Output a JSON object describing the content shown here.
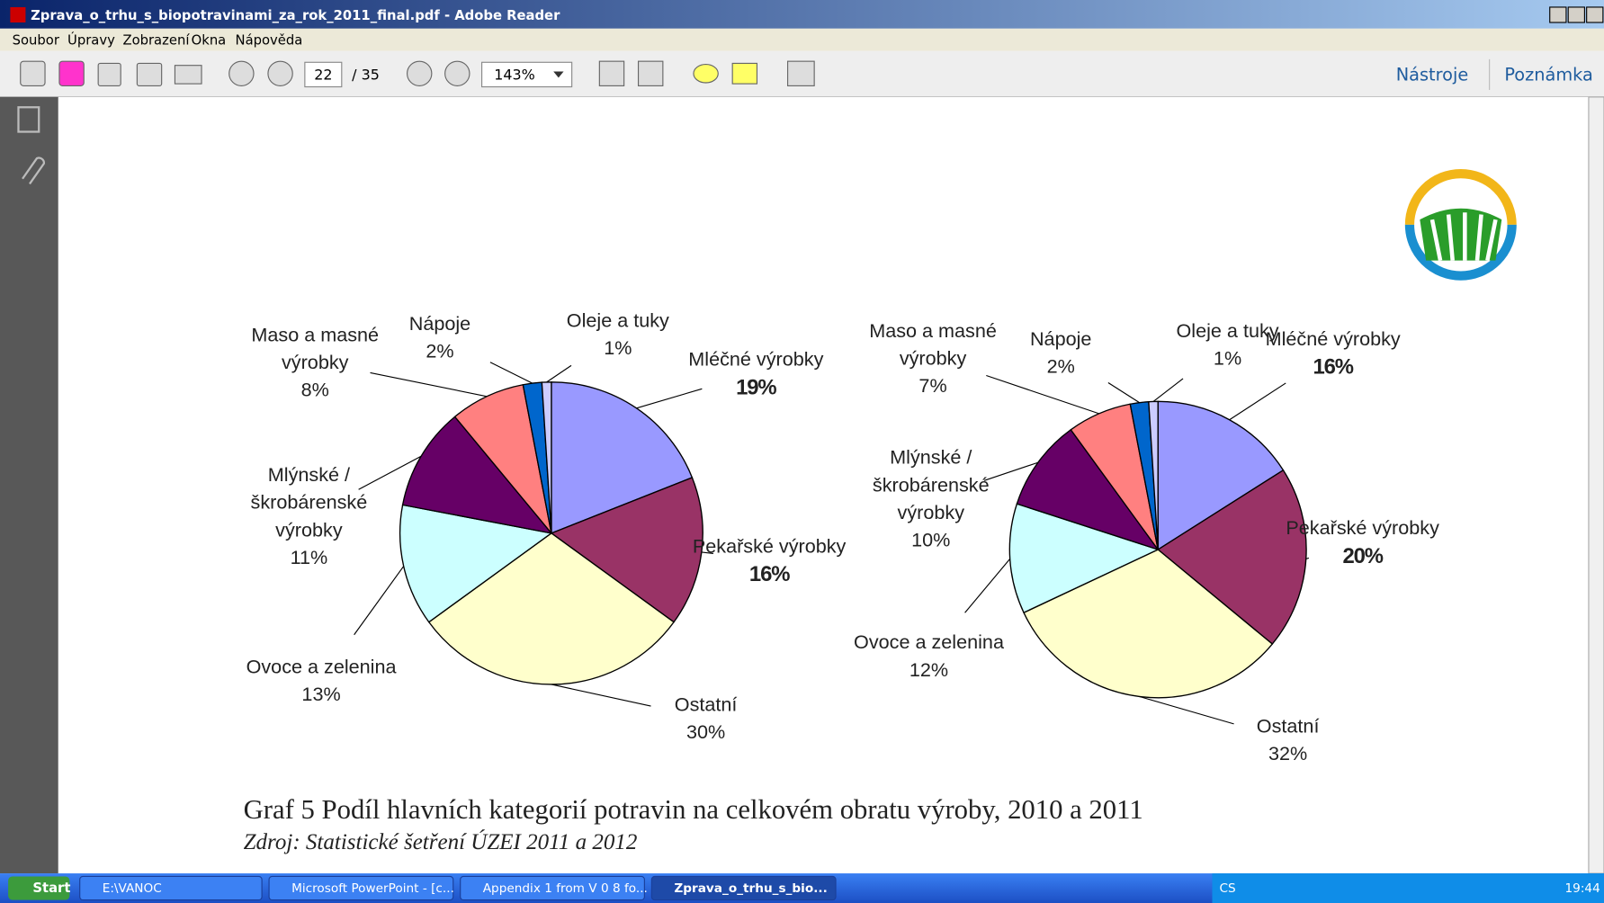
{
  "window": {
    "title": "Zprava_o_trhu_s_biopotravinami_za_rok_2011_final.pdf - Adobe Reader"
  },
  "menu": [
    "Soubor",
    "Úpravy",
    "Zobrazení",
    "Okna",
    "Nápověda"
  ],
  "toolbar": {
    "page": "22",
    "pages": "/ 35",
    "zoom": "143%",
    "tools": "Nástroje",
    "comment": "Poznámka"
  },
  "chart_data": [
    {
      "type": "pie",
      "categories": [
        "Mléčné výrobky",
        "Pekařské výrobky",
        "Ostatní",
        "Ovoce a zelenina",
        "Mlýnské / škrobárenské výrobky",
        "Maso a masné výrobky",
        "Nápoje",
        "Oleje a tuky"
      ],
      "values": [
        19,
        16,
        30,
        13,
        11,
        8,
        2,
        1
      ],
      "value_labels": [
        "19%",
        "16%",
        "30%",
        "13%",
        "11%",
        "8%",
        "2%",
        "1%"
      ],
      "colors": [
        "#9999ff",
        "#993366",
        "#ffffcc",
        "#ccffff",
        "#660066",
        "#ff8080",
        "#0066cc",
        "#ccccff"
      ]
    },
    {
      "type": "pie",
      "categories": [
        "Mléčné výrobky",
        "Pekařské výrobky",
        "Ostatní",
        "Ovoce a zelenina",
        "Mlýnské / škrobárenské výrobky",
        "Maso a masné výrobky",
        "Nápoje",
        "Oleje a tuky"
      ],
      "values": [
        16,
        20,
        32,
        12,
        10,
        7,
        2,
        1
      ],
      "value_labels": [
        "16%",
        "20%",
        "32%",
        "12%",
        "10%",
        "7%",
        "2%",
        "1%"
      ],
      "colors": [
        "#9999ff",
        "#993366",
        "#ffffcc",
        "#ccffff",
        "#660066",
        "#ff8080",
        "#0066cc",
        "#ccccff"
      ]
    }
  ],
  "caption": "Graf 5 Podíl hlavních kategorií potravin na celkovém obratu výroby, 2010 a 2011",
  "source": "Zdroj: Statistické šetření ÚZEI 2011 a 2012",
  "taskbar": {
    "start": "Start",
    "items": [
      "E:\\VANOC",
      "Microsoft PowerPoint - [c...",
      "Appendix 1 from V 0 8 fo...",
      "Zprava_o_trhu_s_bio..."
    ],
    "lang": "CS",
    "clock": "19:44"
  }
}
